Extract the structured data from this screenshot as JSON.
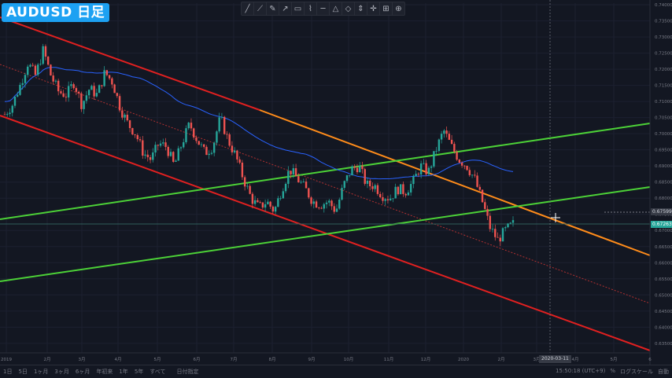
{
  "symbol": "AUDUSD 日足",
  "toolbar": {
    "tools": [
      "trend-line",
      "extended-line",
      "brush",
      "arrow",
      "rectangle",
      "path",
      "horizontal-line",
      "triangle",
      "pattern",
      "price-range",
      "crosshair",
      "measure",
      "zoom"
    ]
  },
  "colors": {
    "background": "#131722",
    "up": "#26a69a",
    "down": "#ef5350",
    "ma": "#2962ff",
    "channel_red": "#e02020",
    "channel_green": "#4cd137",
    "trend_orange": "#ff8c1a"
  },
  "price_tags": {
    "cursor": "0.67599",
    "last": "0.67263"
  },
  "date_tag": "2020-03-11",
  "bottom": {
    "ranges": [
      "1日",
      "5日",
      "1ヶ月",
      "3ヶ月",
      "6ヶ月",
      "年初来",
      "1年",
      "5年",
      "すべて"
    ],
    "date_range": "日付指定",
    "clock": "15:50:18 (UTC+9)",
    "percent": "%",
    "log": "ログスケール",
    "auto": "自動"
  },
  "chart_data": {
    "type": "candlestick",
    "ylim": [
      0.6335,
      0.7405
    ],
    "y_ticks": [
      "0.74000",
      "0.73500",
      "0.73000",
      "0.72500",
      "0.72000",
      "0.71500",
      "0.71000",
      "0.70500",
      "0.70000",
      "0.69500",
      "0.69000",
      "0.68500",
      "0.68000",
      "0.67500",
      "0.67000",
      "0.66500",
      "0.66000",
      "0.65500",
      "0.65000",
      "0.64500",
      "0.64000",
      "0.63500"
    ],
    "x_ticks": [
      "2019",
      "2月",
      "3月",
      "4月",
      "5月",
      "6月",
      "7月",
      "8月",
      "9月",
      "10月",
      "11月",
      "12月",
      "2020",
      "2月",
      "3月",
      "4月",
      "5月",
      "6"
    ],
    "close_path": [
      [
        0,
        0.706
      ],
      [
        2,
        0.709
      ],
      [
        4,
        0.715
      ],
      [
        6,
        0.722
      ],
      [
        8,
        0.718
      ],
      [
        10,
        0.726
      ],
      [
        12,
        0.718
      ],
      [
        14,
        0.713
      ],
      [
        16,
        0.712
      ],
      [
        18,
        0.716
      ],
      [
        20,
        0.709
      ],
      [
        22,
        0.714
      ],
      [
        24,
        0.712
      ],
      [
        26,
        0.719
      ],
      [
        28,
        0.716
      ],
      [
        30,
        0.708
      ],
      [
        32,
        0.703
      ],
      [
        34,
        0.7
      ],
      [
        36,
        0.694
      ],
      [
        38,
        0.692
      ],
      [
        40,
        0.697
      ],
      [
        42,
        0.696
      ],
      [
        44,
        0.69
      ],
      [
        46,
        0.697
      ],
      [
        48,
        0.703
      ],
      [
        50,
        0.698
      ],
      [
        52,
        0.694
      ],
      [
        54,
        0.696
      ],
      [
        56,
        0.705
      ],
      [
        58,
        0.698
      ],
      [
        60,
        0.693
      ],
      [
        62,
        0.686
      ],
      [
        64,
        0.68
      ],
      [
        66,
        0.677
      ],
      [
        68,
        0.679
      ],
      [
        70,
        0.676
      ],
      [
        72,
        0.683
      ],
      [
        74,
        0.689
      ],
      [
        76,
        0.686
      ],
      [
        78,
        0.683
      ],
      [
        80,
        0.679
      ],
      [
        82,
        0.678
      ],
      [
        84,
        0.679
      ],
      [
        86,
        0.676
      ],
      [
        88,
        0.684
      ],
      [
        90,
        0.689
      ],
      [
        92,
        0.69
      ],
      [
        94,
        0.684
      ],
      [
        96,
        0.684
      ],
      [
        98,
        0.681
      ],
      [
        100,
        0.68
      ],
      [
        102,
        0.683
      ],
      [
        104,
        0.682
      ],
      [
        106,
        0.685
      ],
      [
        108,
        0.69
      ],
      [
        110,
        0.688
      ],
      [
        112,
        0.695
      ],
      [
        114,
        0.701
      ],
      [
        116,
        0.696
      ],
      [
        118,
        0.692
      ],
      [
        120,
        0.69
      ],
      [
        122,
        0.686
      ],
      [
        124,
        0.679
      ],
      [
        126,
        0.671
      ],
      [
        128,
        0.667
      ],
      [
        130,
        0.67
      ],
      [
        132,
        0.672
      ]
    ]
  }
}
